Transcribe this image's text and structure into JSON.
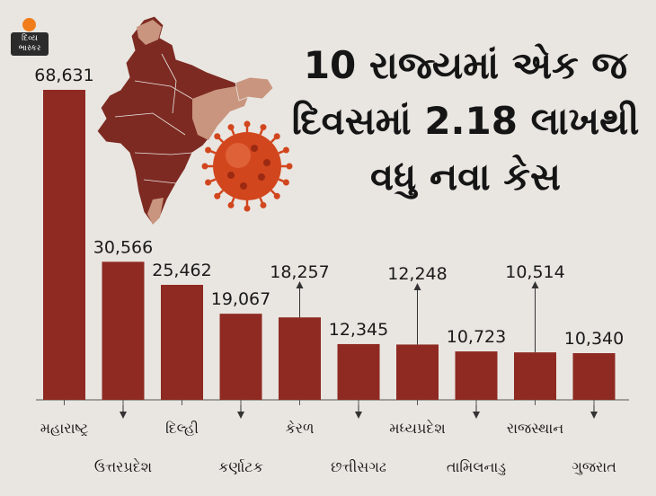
{
  "brand": {
    "logo_text": "દિવ્ય ભાસ્કર"
  },
  "headline": "10 રાજ્યમાં એક જ દિવસમાં 2.18 લાખથી વધુ નવા કેસ",
  "colors": {
    "bar": "#8e2a22",
    "map_dark": "#7d2a22",
    "map_light": "#c9957e",
    "virus": "#d2461e",
    "background": "#e9e6e1",
    "text": "#1a1a1a"
  },
  "chart_data": {
    "type": "bar",
    "title": "10 રાજ્યમાં એક જ દિવસમાં 2.18 લાખથી વધુ નવા કેસ",
    "categories": [
      "મહારાષ્ટ્ર",
      "ઉત્તરપ્રદેશ",
      "દિલ્હી",
      "કર્ણાટક",
      "કેરળ",
      "છત્તીસગઢ",
      "મધ્યપ્રદેશ",
      "તામિલનાડુ",
      "રાજસ્થાન",
      "ગુજરાત"
    ],
    "values": [
      68631,
      30566,
      25462,
      19067,
      18257,
      12345,
      12248,
      10723,
      10514,
      10340
    ],
    "value_labels": [
      "68,631",
      "30,566",
      "25,462",
      "19,067",
      "18,257",
      "12,345",
      "12,248",
      "10,723",
      "10,514",
      "10,340"
    ],
    "ylim": [
      0,
      72000
    ],
    "grid": false,
    "legend": "none",
    "xlabel": "",
    "ylabel": ""
  }
}
